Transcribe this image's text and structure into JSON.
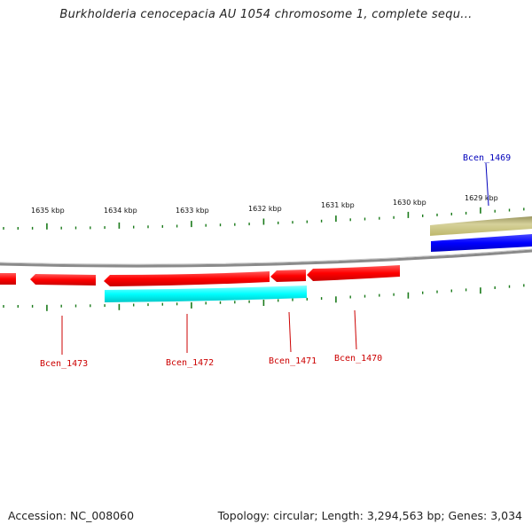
{
  "title": "Burkholderia cenocepacia AU 1054 chromosome 1, complete sequ...",
  "footer": {
    "accession": "Accession: NC_008060",
    "summary": "Topology: circular; Length: 3,294,563 bp; Genes: 3,034"
  },
  "scale_labels": [
    "1635 kbp",
    "1634 kbp",
    "1633 kbp",
    "1632 kbp",
    "1631 kbp",
    "1630 kbp",
    "1629 kbp"
  ],
  "gene_labels": [
    {
      "text": "Bcen_1473",
      "color": "#cc0000"
    },
    {
      "text": "Bcen_1472",
      "color": "#cc0000"
    },
    {
      "text": "Bcen_1471",
      "color": "#cc0000"
    },
    {
      "text": "Bcen_1470",
      "color": "#cc0000"
    },
    {
      "text": "Bcen_1469",
      "color": "#0000bb"
    }
  ],
  "colors": {
    "reverse_gene": "#ff0000",
    "forward_gene": "#0000ff",
    "feature_cyan": "#00ffff",
    "feature_khaki": "#bdb76b",
    "backbone": "#808080",
    "ticks": "#1a7a1a"
  }
}
